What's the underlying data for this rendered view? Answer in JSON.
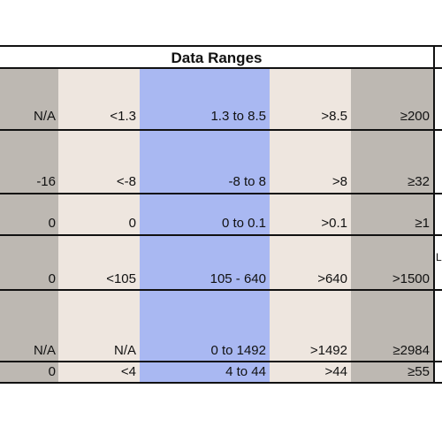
{
  "title": "Data Ranges",
  "rows": [
    [
      "N/A",
      "<1.3",
      "1.3 to 8.5",
      ">8.5",
      "≥200"
    ],
    [
      "-16",
      "<-8",
      "-8 to 8",
      ">8",
      "≥32"
    ],
    [
      "0",
      "0",
      "0 to 0.1",
      ">0.1",
      "≥1"
    ],
    [
      "0",
      "<105",
      "105 - 640",
      ">640",
      ">1500"
    ],
    [
      "N/A",
      "N/A",
      "0 to 1492",
      ">1492",
      "≥2984"
    ],
    [
      "0",
      "<4",
      "4  to 44",
      ">44",
      "≥55"
    ]
  ],
  "right_fragment": "L",
  "colors": {
    "gray_column": "#bdb8b2",
    "beige_column": "#eee6df",
    "blue_column": "#a9b8f2",
    "line": "#111111"
  }
}
